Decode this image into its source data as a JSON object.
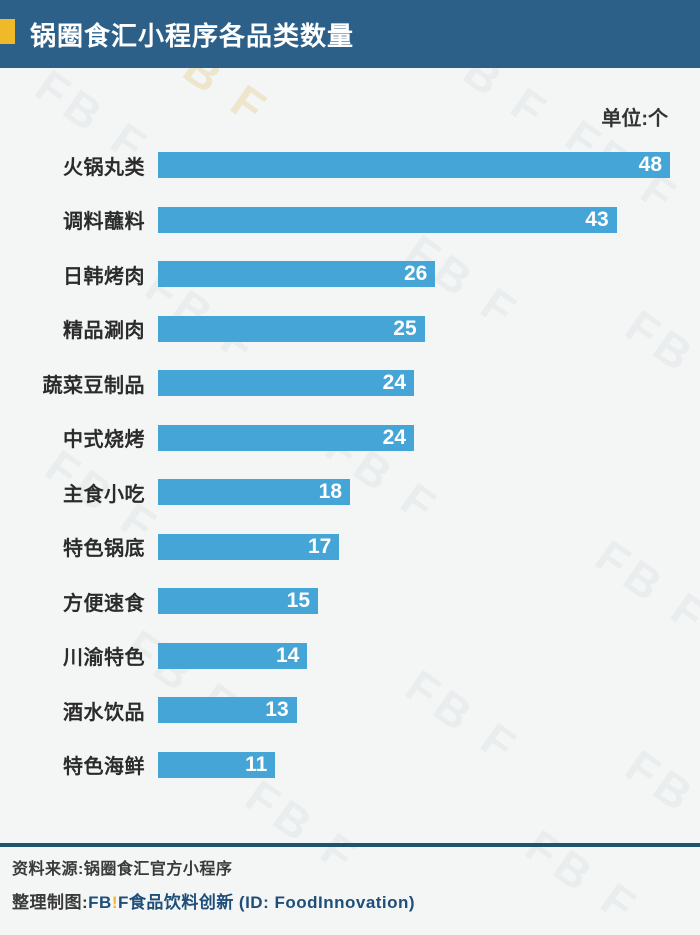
{
  "header": {
    "title": "锅圈食汇小程序各品类数量"
  },
  "unit_label": "单位:个",
  "chart_data": {
    "type": "bar",
    "orientation": "horizontal",
    "title": "锅圈食汇小程序各品类数量",
    "unit": "个",
    "categories": [
      "火锅丸类",
      "调料蘸料",
      "日韩烤肉",
      "精品涮肉",
      "蔬菜豆制品",
      "中式烧烤",
      "主食小吃",
      "特色锅底",
      "方便速食",
      "川渝特色",
      "酒水饮品",
      "特色海鲜"
    ],
    "values": [
      48,
      43,
      26,
      25,
      24,
      24,
      18,
      17,
      15,
      14,
      13,
      11
    ],
    "xmax": 48,
    "value_labels_inside_bars": true,
    "grid": false,
    "legend": false
  },
  "footer": {
    "source": "资料来源:锅圈食汇官方小程序",
    "credit_prefix": "整理制图:",
    "logo_fb": "FB",
    "logo_bang": "!",
    "logo_f": "F",
    "credit_brand": "食品饮料创新",
    "credit_id": "(ID: FoodInnovation)"
  },
  "watermark": {
    "text": "FB F"
  },
  "colors": {
    "header_bg": "#2d6089",
    "accent_yellow": "#f0b929",
    "bar_blue": "#45a5d6",
    "value_text": "#ffffff",
    "footer_navy": "#1f4e79",
    "divider_teal": "#20546e",
    "page_bg": "#f4f6f6"
  }
}
